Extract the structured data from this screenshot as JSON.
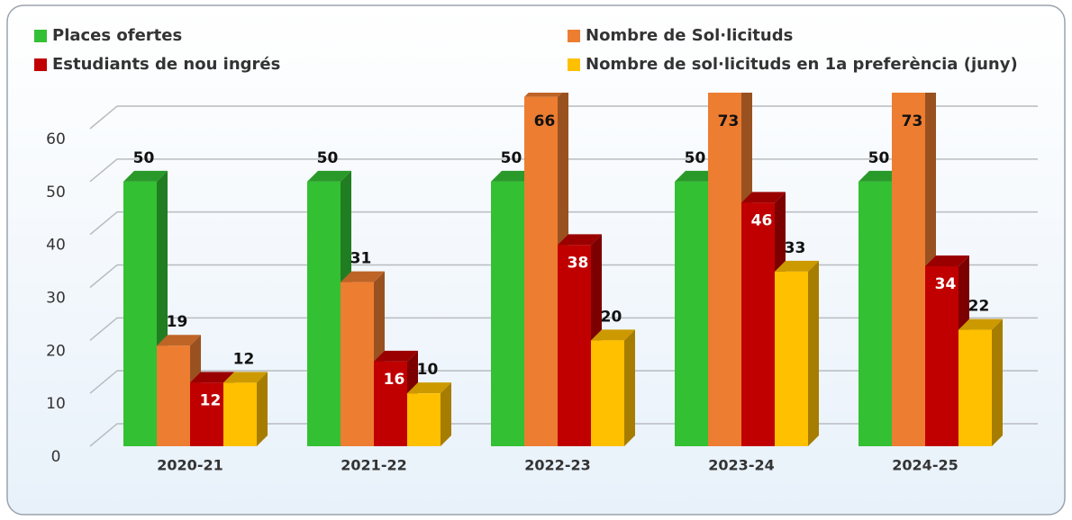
{
  "chart_data": {
    "type": "bar3d",
    "categories": [
      "2020-21",
      "2021-22",
      "2022-23",
      "2023-24",
      "2024-25"
    ],
    "series": [
      {
        "name": "Places ofertes",
        "color": "#33c033",
        "values": [
          50,
          50,
          50,
          50,
          50
        ]
      },
      {
        "name": "Nombre de Sol·licituds",
        "color": "#ed7d31",
        "values": [
          19,
          31,
          66,
          73,
          73
        ]
      },
      {
        "name": "Estudiants de nou ingrés",
        "color": "#c00000",
        "values": [
          12,
          16,
          38,
          46,
          34
        ]
      },
      {
        "name": "Nombre de sol·licituds en 1a preferència (juny)",
        "color": "#ffc000",
        "values": [
          12,
          10,
          20,
          33,
          22
        ]
      }
    ],
    "ylim": [
      0,
      60
    ],
    "yticks": [
      0,
      10,
      20,
      30,
      40,
      50,
      60
    ],
    "grid": true
  }
}
